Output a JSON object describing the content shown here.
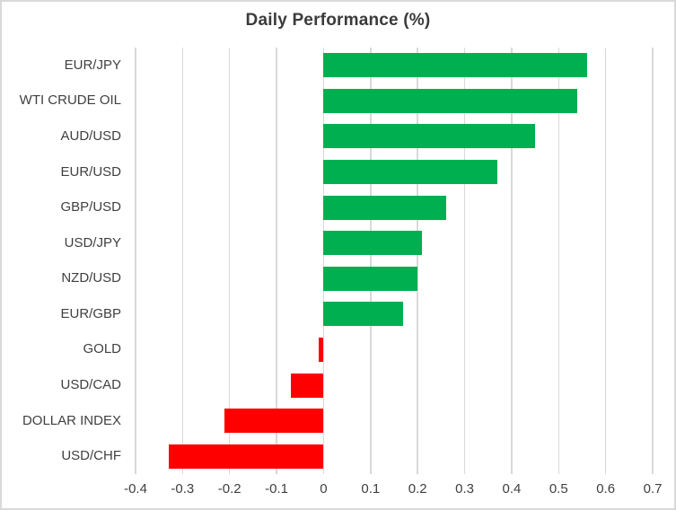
{
  "chart": {
    "title": "Daily Performance (%)",
    "colors": {
      "positive": "#00B050",
      "negative": "#FF0000",
      "gridline": "#D9D9D9",
      "text": "#404040",
      "title_text": "#3b3b3b",
      "border": "#D9D9D9",
      "background": "#FFFFFF"
    }
  },
  "chart_data": {
    "type": "bar",
    "orientation": "horizontal",
    "title": "Daily Performance (%)",
    "categories": [
      "EUR/JPY",
      "WTI CRUDE OIL",
      "AUD/USD",
      "EUR/USD",
      "GBP/USD",
      "USD/JPY",
      "NZD/USD",
      "EUR/GBP",
      "GOLD",
      "USD/CAD",
      "DOLLAR INDEX",
      "USD/CHF"
    ],
    "values": [
      0.56,
      0.54,
      0.45,
      0.37,
      0.26,
      0.21,
      0.2,
      0.17,
      -0.01,
      -0.07,
      -0.21,
      -0.33
    ],
    "xlabel": "",
    "ylabel": "",
    "xlim": [
      -0.4,
      0.7
    ],
    "x_ticks": [
      "-0.4",
      "-0.3",
      "-0.2",
      "-0.1",
      "0",
      "0.1",
      "0.2",
      "0.3",
      "0.4",
      "0.5",
      "0.6",
      "0.7"
    ],
    "grid": true,
    "legend": false,
    "bar_color_positive": "#00B050",
    "bar_color_negative": "#FF0000"
  }
}
